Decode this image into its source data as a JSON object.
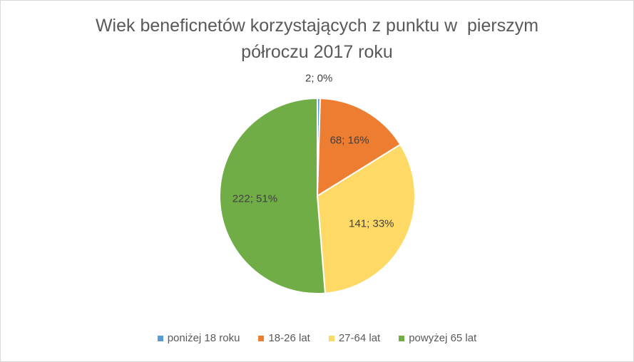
{
  "chart_data": {
    "type": "pie",
    "title_lines": [
      "Wiek beneficnetów korzystających z punktu w  pierszym",
      "półroczu 2017 roku"
    ],
    "categories": [
      "poniżej 18 roku",
      "18-26 lat",
      "27-64 lat",
      "powyżej 65 lat"
    ],
    "values": [
      2,
      68,
      141,
      222
    ],
    "percent_labels": [
      "0%",
      "16%",
      "33%",
      "51%"
    ],
    "data_labels": [
      "2; 0%",
      "68; 16%",
      "141; 33%",
      "222; 51%"
    ],
    "colors": [
      "#5b9bd5",
      "#ed7d31",
      "#ffd966",
      "#70ad47"
    ],
    "legend_position": "bottom"
  }
}
